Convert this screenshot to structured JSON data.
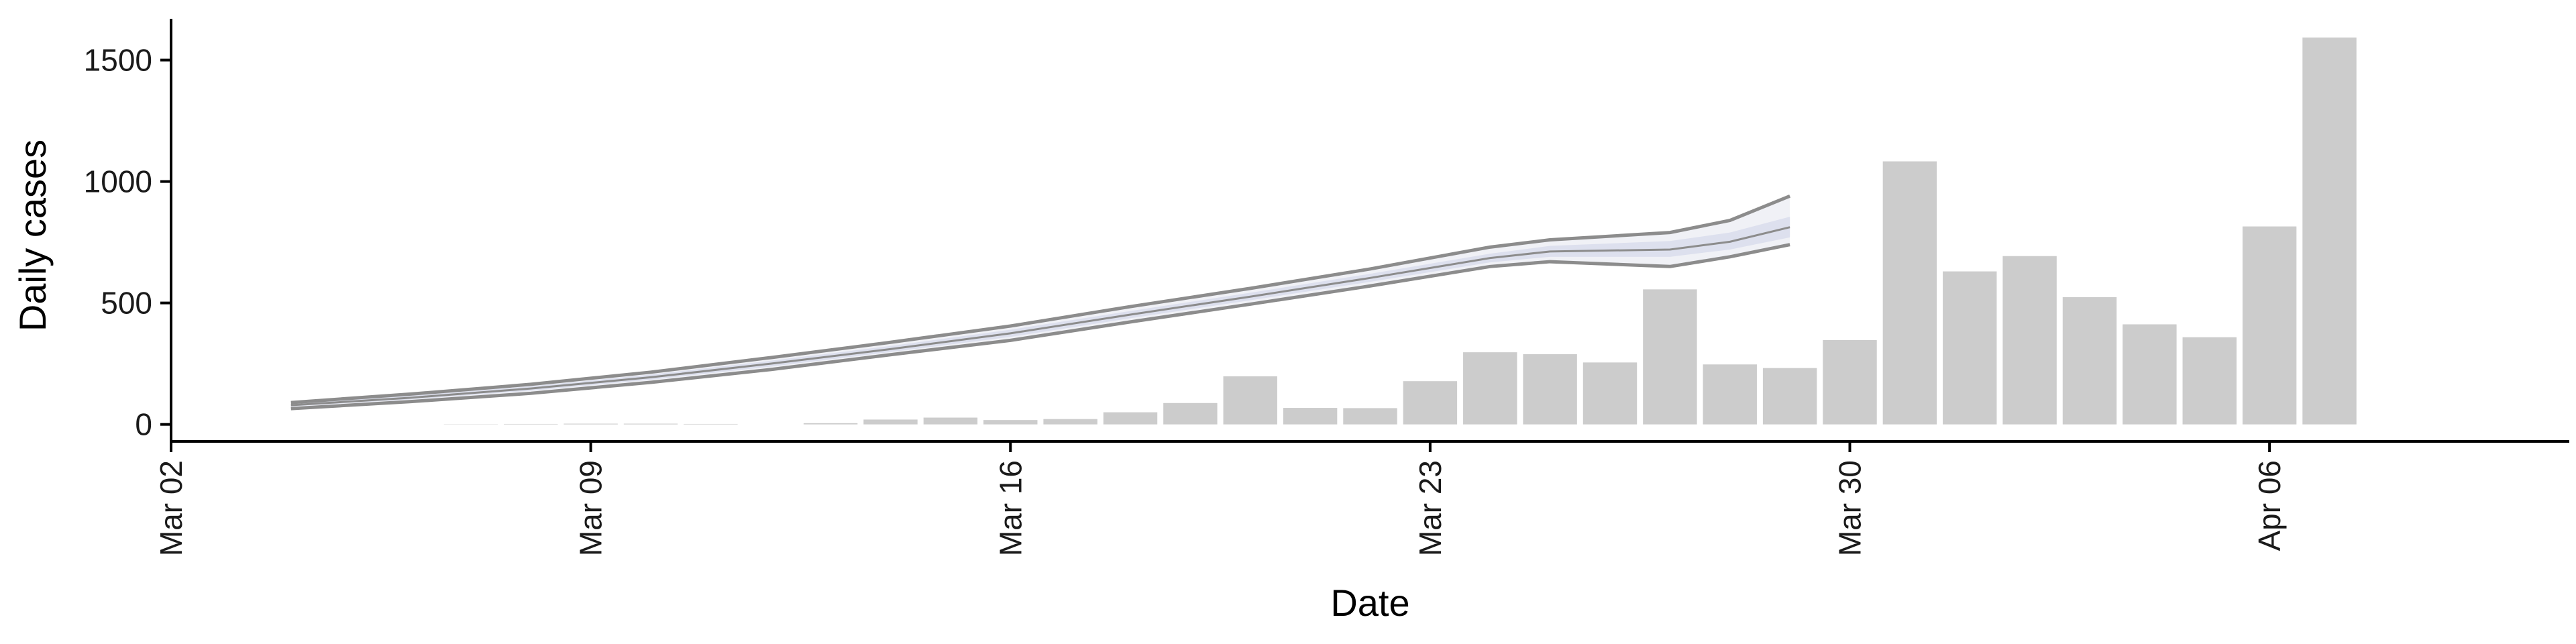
{
  "chart_data": {
    "type": "bar",
    "xlabel": "Date",
    "ylabel": "Daily cases",
    "xlim": [
      "2020-03-02",
      "2020-04-11"
    ],
    "ylim": [
      -70,
      1670
    ],
    "x_ticks": [
      {
        "date": "2020-03-02",
        "label": "Mar 02"
      },
      {
        "date": "2020-03-09",
        "label": "Mar 09"
      },
      {
        "date": "2020-03-16",
        "label": "Mar 16"
      },
      {
        "date": "2020-03-23",
        "label": "Mar 23"
      },
      {
        "date": "2020-03-30",
        "label": "Mar 30"
      },
      {
        "date": "2020-04-06",
        "label": "Apr 06"
      }
    ],
    "y_ticks": [
      0,
      500,
      1000,
      1500
    ],
    "grid": false,
    "legend": "none",
    "colors": {
      "bar": "#cccccc",
      "line": "#8c8c8c",
      "band_inner": "#dde0ee",
      "band_outer": "#f0f1f6",
      "axis": "#000000"
    },
    "bars": {
      "dates": [
        "2020-03-07",
        "2020-03-08",
        "2020-03-09",
        "2020-03-10",
        "2020-03-11",
        "2020-03-12",
        "2020-03-13",
        "2020-03-14",
        "2020-03-15",
        "2020-03-16",
        "2020-03-17",
        "2020-03-18",
        "2020-03-19",
        "2020-03-20",
        "2020-03-21",
        "2020-03-22",
        "2020-03-23",
        "2020-03-24",
        "2020-03-25",
        "2020-03-26",
        "2020-03-27",
        "2020-03-28",
        "2020-03-29",
        "2020-03-30",
        "2020-03-31",
        "2020-04-01",
        "2020-04-02",
        "2020-04-03",
        "2020-04-04",
        "2020-04-05",
        "2020-04-06",
        "2020-04-07"
      ],
      "values": [
        1,
        2,
        3,
        3,
        2,
        0,
        5,
        20,
        28,
        18,
        22,
        50,
        88,
        198,
        68,
        67,
        178,
        297,
        289,
        255,
        556,
        247,
        232,
        347,
        1083,
        630,
        693,
        524,
        412,
        359,
        815,
        1593
      ]
    },
    "series": [
      {
        "dates": [
          "2020-03-04",
          "2020-03-06",
          "2020-03-08",
          "2020-03-10",
          "2020-03-12",
          "2020-03-14",
          "2020-03-16",
          "2020-03-18",
          "2020-03-20",
          "2020-03-22",
          "2020-03-24",
          "2020-03-25",
          "2020-03-27",
          "2020-03-28",
          "2020-03-29"
        ],
        "upper": [
          90,
          125,
          165,
          215,
          275,
          338,
          405,
          485,
          560,
          640,
          730,
          760,
          790,
          840,
          940
        ],
        "inner_upper": [
          85,
          118,
          157,
          205,
          262,
          323,
          390,
          467,
          542,
          620,
          703,
          735,
          755,
          790,
          855
        ],
        "median": [
          79,
          110,
          148,
          194,
          250,
          310,
          375,
          452,
          526,
          603,
          685,
          712,
          720,
          752,
          812
        ],
        "inner_lower": [
          74,
          103,
          139,
          184,
          238,
          298,
          360,
          437,
          511,
          587,
          667,
          690,
          690,
          720,
          770
        ],
        "lower": [
          65,
          94,
          128,
          173,
          226,
          287,
          346,
          422,
          495,
          570,
          650,
          670,
          650,
          690,
          740
        ]
      }
    ]
  }
}
